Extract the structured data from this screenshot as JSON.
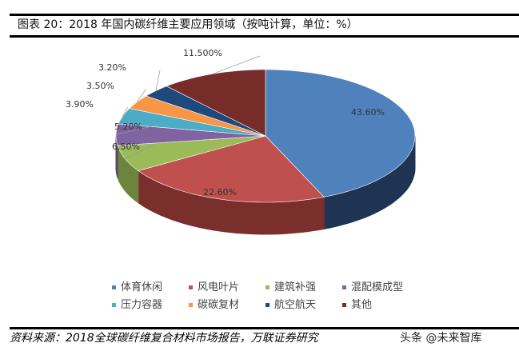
{
  "title": "图表 20：2018 年国内碳纤维主要应用领域（按吨计算，单位：%）",
  "source": "资料来源：2018全球碳纤维复合材料市场报告，万联证券研究",
  "watermark": "头条 @未来智库",
  "chart_data": {
    "type": "pie",
    "style": "3d",
    "title": "2018 年国内碳纤维主要应用领域（按吨计算，单位：%）",
    "categories": [
      "体育休闲",
      "风电叶片",
      "建筑补强",
      "混配模成型",
      "压力容器",
      "碳碳复材",
      "航空航天",
      "其他"
    ],
    "values": [
      43.6,
      22.6,
      6.5,
      5.2,
      3.9,
      3.5,
      3.2,
      11.5
    ],
    "data_labels": [
      "43.60%",
      "22.60%",
      "6.50%",
      "5.20%",
      "3.90%",
      "3.50%",
      "3.20%",
      "11.500%"
    ],
    "colors": [
      "#4F81BD",
      "#C0504D",
      "#9BBB59",
      "#8064A2",
      "#4BACC6",
      "#F79646",
      "#1F497D",
      "#772C2A"
    ],
    "side_colors": [
      "#1F3352",
      "#7A2F2D",
      "#6C843C",
      "#56436F",
      "#2F7C8F",
      "#B06A2E",
      "#13294A",
      "#4E1C1B"
    ],
    "legend_position": "bottom"
  }
}
